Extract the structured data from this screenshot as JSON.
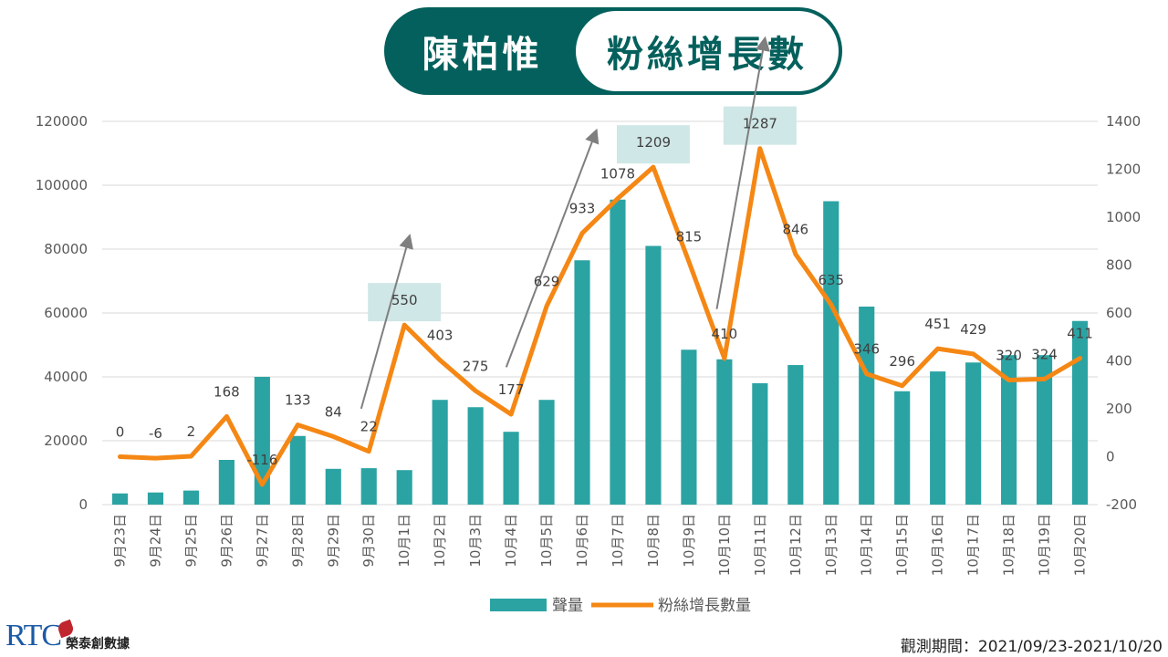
{
  "title": {
    "name": "陳柏惟",
    "subtitle": "粉絲增長數"
  },
  "footer": {
    "logo_text": "榮泰創數據",
    "logo_letters": "RTC",
    "period": "觀測期間：2021/09/23-2021/10/20"
  },
  "colors": {
    "bar": "#2ba3a3",
    "line": "#f58714",
    "title_dark": "#04605c",
    "highlight_box": "#cfe7e6",
    "arrow": "#7f7f7f"
  },
  "chart_data": {
    "type": "bar+line",
    "categories": [
      "9月23日",
      "9月24日",
      "9月25日",
      "9月26日",
      "9月27日",
      "9月28日",
      "9月29日",
      "9月30日",
      "10月1日",
      "10月2日",
      "10月3日",
      "10月4日",
      "10月5日",
      "10月6日",
      "10月7日",
      "10月8日",
      "10月9日",
      "10月10日",
      "10月11日",
      "10月12日",
      "10月13日",
      "10月14日",
      "10月15日",
      "10月16日",
      "10月17日",
      "10月18日",
      "10月19日",
      "10月20日"
    ],
    "series": [
      {
        "name": "聲量",
        "type": "bar",
        "axis": "left",
        "values": [
          3500,
          3800,
          4400,
          14000,
          40000,
          21500,
          11200,
          11400,
          10800,
          32800,
          30500,
          22800,
          32800,
          76500,
          95500,
          81000,
          48500,
          45500,
          38000,
          43700,
          95000,
          62000,
          35500,
          41700,
          44500,
          46800,
          46800,
          57500
        ]
      },
      {
        "name": "粉絲增長數量",
        "type": "line",
        "axis": "right",
        "values": [
          0,
          -6,
          2,
          168,
          -116,
          133,
          84,
          22,
          550,
          403,
          275,
          177,
          629,
          933,
          1078,
          1209,
          815,
          410,
          1287,
          846,
          635,
          346,
          296,
          451,
          429,
          320,
          324,
          411
        ]
      }
    ],
    "left_axis": {
      "min": 0,
      "max": 120000,
      "ticks": [
        0,
        20000,
        40000,
        60000,
        80000,
        100000,
        120000
      ]
    },
    "right_axis": {
      "min": -200,
      "max": 1400,
      "ticks": [
        -200,
        0,
        200,
        400,
        600,
        800,
        1000,
        1200,
        1400
      ]
    },
    "highlighted_points": [
      8,
      15,
      18
    ],
    "arrows": [
      [
        7,
        8
      ],
      [
        11,
        13
      ],
      [
        17,
        18
      ]
    ],
    "legend_position": "bottom",
    "grid": true
  }
}
